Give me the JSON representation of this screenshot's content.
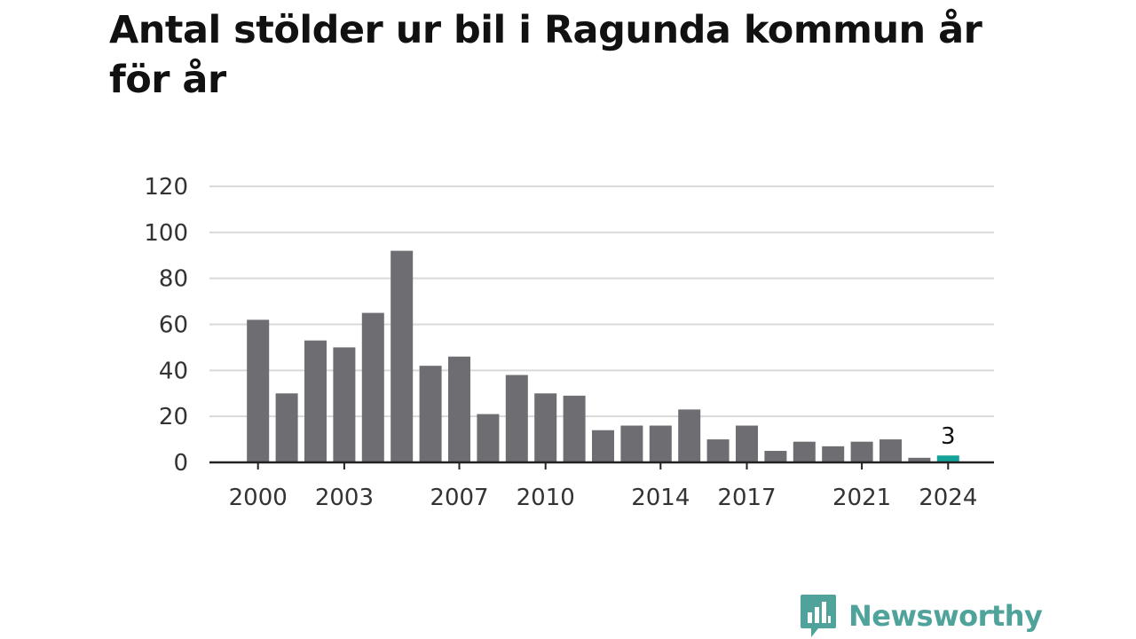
{
  "title": "Antal stölder ur bil i Ragunda kommun år för år",
  "brand": {
    "name": "Newsworthy",
    "logo_icon": "speech-bubble-bar-chart-icon",
    "color": "#4fa39a"
  },
  "colors": {
    "bar": "#6e6d72",
    "highlight": "#14a39a",
    "grid": "#d9d9d9",
    "axis": "#222222"
  },
  "chart_data": {
    "type": "bar",
    "title": "Antal stölder ur bil i Ragunda kommun år för år",
    "xlabel": "",
    "ylabel": "",
    "ylim": [
      0,
      120
    ],
    "yticks": [
      0,
      20,
      40,
      60,
      80,
      100,
      120
    ],
    "grid": true,
    "categories": [
      2000,
      2001,
      2002,
      2003,
      2004,
      2005,
      2006,
      2007,
      2008,
      2009,
      2010,
      2011,
      2012,
      2013,
      2014,
      2015,
      2016,
      2017,
      2018,
      2019,
      2020,
      2021,
      2022,
      2023,
      2024
    ],
    "values": [
      62,
      30,
      53,
      50,
      65,
      92,
      42,
      46,
      21,
      38,
      30,
      29,
      14,
      16,
      16,
      23,
      10,
      16,
      5,
      9,
      7,
      9,
      10,
      2,
      3
    ],
    "xtick_labels": [
      "2000",
      "2003",
      "2007",
      "2010",
      "2014",
      "2017",
      "2021",
      "2024"
    ],
    "highlight": {
      "category": 2024,
      "value_label": "3"
    }
  }
}
